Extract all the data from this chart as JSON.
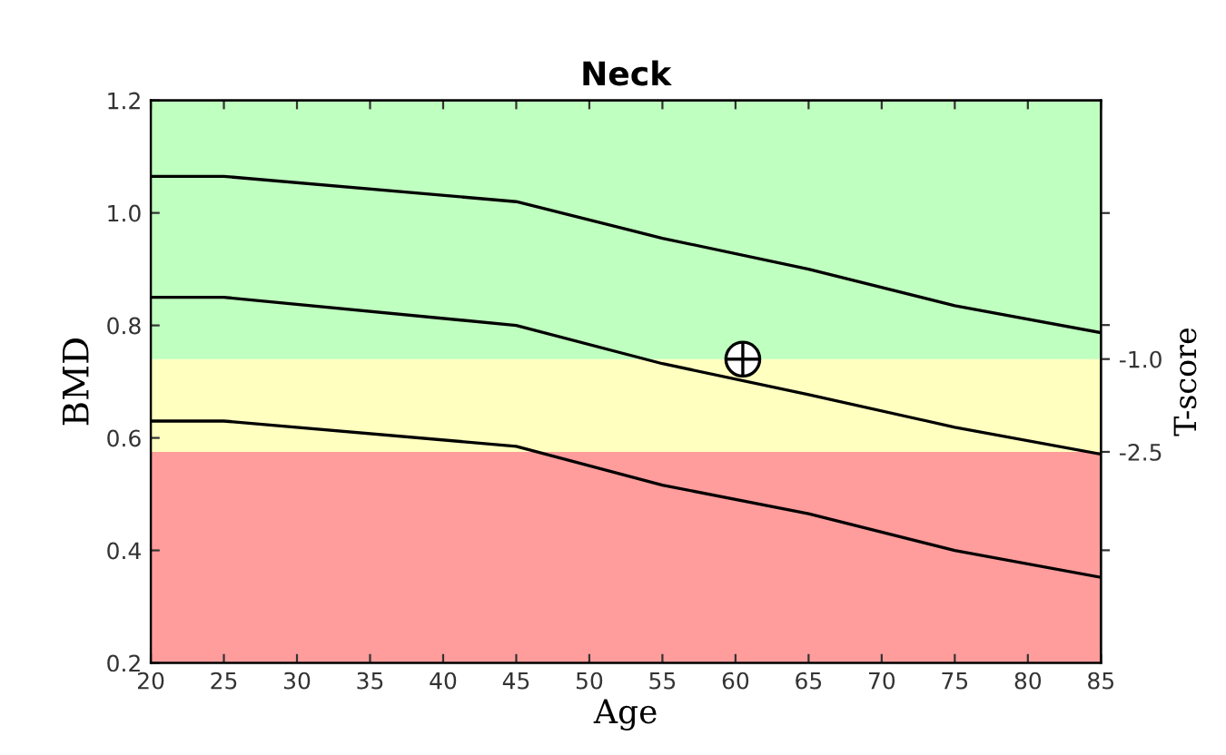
{
  "chart_data": {
    "type": "line",
    "title": "Neck",
    "xlabel": "Age",
    "ylabel": "BMD",
    "y2label": "T-score",
    "xlim": [
      20,
      85
    ],
    "xticks": [
      20,
      25,
      30,
      35,
      40,
      45,
      50,
      55,
      60,
      65,
      70,
      75,
      80,
      85
    ],
    "ylim": [
      0.2,
      1.2
    ],
    "yticks": [
      0.2,
      0.4,
      0.6,
      0.8,
      {
        "value": 1,
        "label": "1.0"
      },
      1.2
    ],
    "y2lim": [
      -5.91,
      3.18
    ],
    "y2ticks": [
      {
        "value": 1.36,
        "label": null
      },
      {
        "value": -0.45,
        "label": null
      },
      {
        "value": -1.0,
        "label": "-1.0"
      },
      {
        "value": -2.5,
        "label": "-2.5"
      },
      {
        "value": -4.09,
        "label": null
      }
    ],
    "grid": false,
    "legend": false,
    "bands": [
      {
        "axis": "y",
        "from": 0.2,
        "to": 0.575,
        "color": "#ff9c9c"
      },
      {
        "axis": "y",
        "from": 0.575,
        "to": 0.74,
        "color": "#ffffbf"
      },
      {
        "axis": "y",
        "from": 0.74,
        "to": 1.2,
        "color": "#bfffbf"
      }
    ],
    "series": [
      {
        "color": "#000000",
        "x": [
          20,
          25,
          45,
          55,
          65,
          75,
          85
        ],
        "values": [
          1.065,
          1.065,
          1.02,
          0.955,
          0.9,
          0.835,
          0.787
        ]
      },
      {
        "color": "#000000",
        "x": [
          20,
          25,
          45,
          55,
          65,
          75,
          85
        ],
        "values": [
          0.85,
          0.85,
          0.8,
          0.732,
          0.677,
          0.619,
          0.571
        ]
      },
      {
        "color": "#000000",
        "x": [
          20,
          25,
          45,
          55,
          65,
          75,
          85
        ],
        "values": [
          0.63,
          0.63,
          0.585,
          0.516,
          0.465,
          0.4,
          0.352
        ]
      },
      {
        "type": "scatter",
        "color": "#000000",
        "marker": "circle",
        "x": [
          60.5
        ],
        "values": [
          0.74
        ]
      }
    ]
  }
}
